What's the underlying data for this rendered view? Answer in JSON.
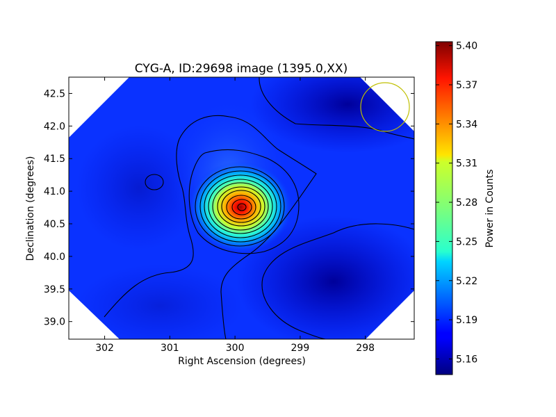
{
  "chart_data": {
    "type": "heatmap",
    "title": "CYG-A, ID:29698 image (1395.0,XX)",
    "xlabel": "Right Ascension (degrees)",
    "ylabel": "Declination (degrees)",
    "xlim": [
      302.55,
      297.25
    ],
    "ylim": [
      38.73,
      42.75
    ],
    "x_ticks": [
      302,
      301,
      300,
      299,
      298
    ],
    "x_tick_labels": [
      "302",
      "301",
      "300",
      "299",
      "298"
    ],
    "y_ticks": [
      39.0,
      39.5,
      40.0,
      40.5,
      41.0,
      41.5,
      42.0,
      42.5
    ],
    "y_tick_labels": [
      "39.0",
      "39.5",
      "40.0",
      "40.5",
      "41.0",
      "41.5",
      "42.0",
      "42.5"
    ],
    "colormap": "jet",
    "colorbar": {
      "label": "Power in Counts",
      "range": [
        5.148,
        5.403
      ],
      "ticks": [
        5.16,
        5.19,
        5.22,
        5.25,
        5.28,
        5.31,
        5.34,
        5.37,
        5.4
      ],
      "tick_labels": [
        "5.16",
        "5.19",
        "5.22",
        "5.25",
        "5.28",
        "5.31",
        "5.34",
        "5.37",
        "5.40"
      ]
    },
    "peak": {
      "ra": 299.85,
      "dec": 40.74,
      "value": 5.4
    },
    "secondary_min": {
      "ra": 301.2,
      "dec": 41.13
    },
    "background_level": 5.18,
    "low_regions": [
      {
        "ra": 298.6,
        "dec": 39.6,
        "value": 5.15
      },
      {
        "ra": 298.5,
        "dec": 42.3,
        "value": 5.15
      }
    ],
    "beam_circle": {
      "ra": 297.65,
      "dec": 42.3,
      "radius_deg": 0.37,
      "color": "#bfbf00"
    }
  }
}
